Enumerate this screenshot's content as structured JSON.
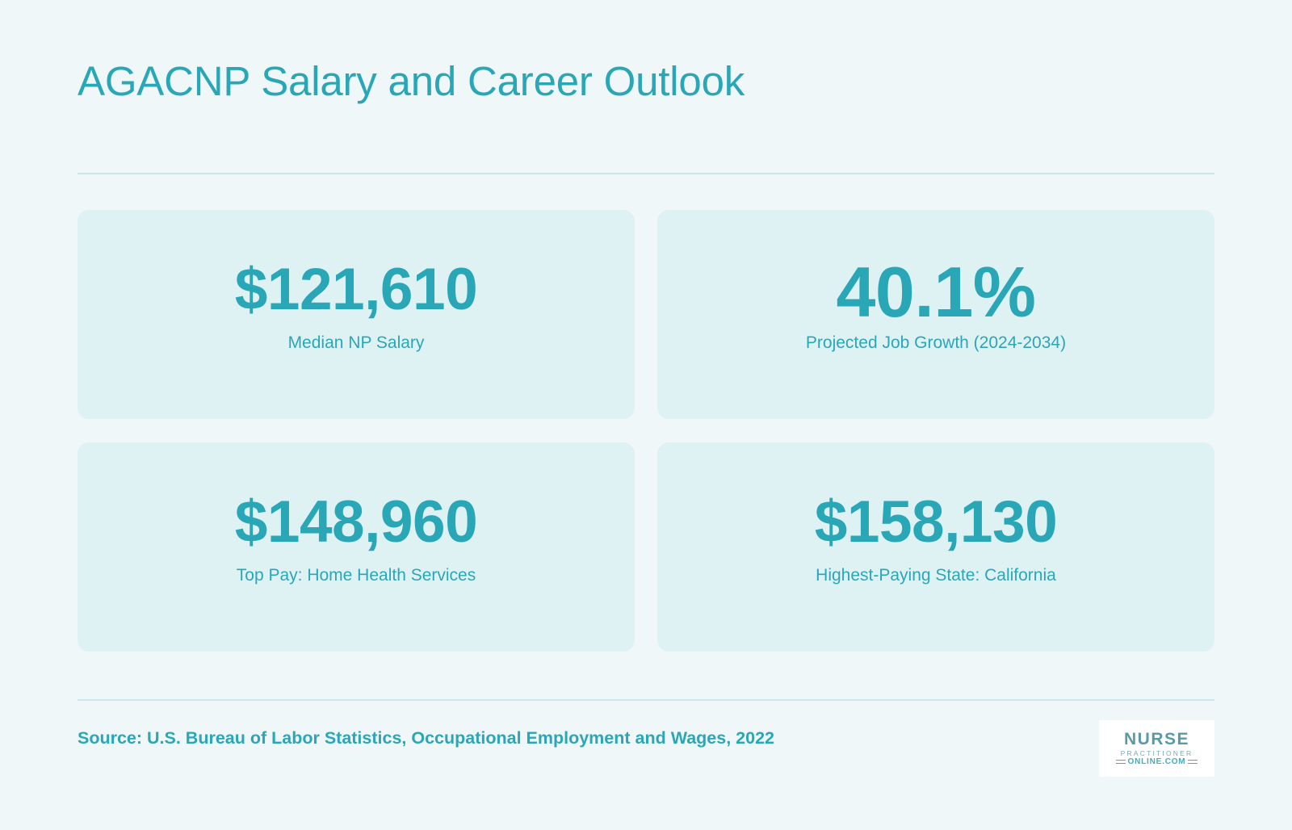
{
  "header": {
    "title": "AGACNP Salary and Career Outlook"
  },
  "stats": [
    {
      "value": "$121,610",
      "label": "Median NP Salary"
    },
    {
      "value": "40.1%",
      "label": "Projected Job Growth (2024-2034)"
    },
    {
      "value": "$148,960",
      "label": "Top Pay: Home Health Services"
    },
    {
      "value": "$158,130",
      "label": "Highest-Paying State: California"
    }
  ],
  "footer": {
    "source": "Source: U.S. Bureau of Labor Statistics, Occupational Employment and Wages, 2022",
    "logo": {
      "line1": "NURSE",
      "line2": "PRACTITIONER",
      "line3": "ONLINE.COM"
    }
  },
  "colors": {
    "accent": "#2aa7b6",
    "background": "#eff7f8",
    "card": "#def2f4"
  }
}
